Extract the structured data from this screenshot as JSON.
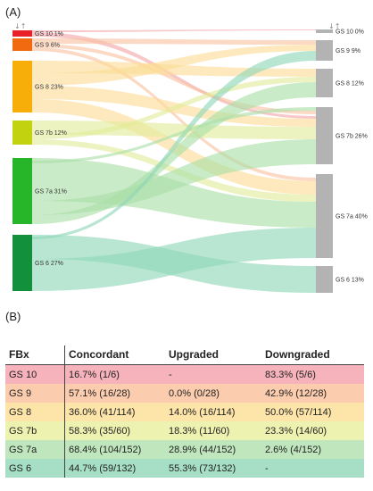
{
  "panel_a_label": "(A)",
  "panel_b_label": "(B)",
  "sankey": {
    "left_nodes": [
      {
        "id": "GS 10",
        "label": "GS 10 1%",
        "color": "#e8202a"
      },
      {
        "id": "GS 9",
        "label": "GS 9 6%",
        "color": "#f26a0f"
      },
      {
        "id": "GS 8",
        "label": "GS 8 23%",
        "color": "#f7ae09"
      },
      {
        "id": "GS 7b",
        "label": "GS 7b 12%",
        "color": "#c3d20f"
      },
      {
        "id": "GS 7a",
        "label": "GS 7a 31%",
        "color": "#27b52a"
      },
      {
        "id": "GS 6",
        "label": "GS 6 27%",
        "color": "#13903b"
      }
    ],
    "right_nodes": [
      {
        "id": "GS 10",
        "label": "GS 10 0%",
        "color": "#b3b3b3"
      },
      {
        "id": "GS 9",
        "label": "GS 9 9%",
        "color": "#b3b3b3"
      },
      {
        "id": "GS 8",
        "label": "GS 8 12%",
        "color": "#b3b3b3"
      },
      {
        "id": "GS 7b",
        "label": "GS 7b 26%",
        "color": "#b3b3b3"
      },
      {
        "id": "GS 7a",
        "label": "GS 7a 40%",
        "color": "#b3b3b3"
      },
      {
        "id": "GS 6",
        "label": "GS 6 13%",
        "color": "#b3b3b3"
      }
    ],
    "flow_colors": {
      "GS 10": "#f2a4a8",
      "GS 9": "#f8c2a0",
      "GS 8": "#fbdc94",
      "GS 7b": "#e2ec9a",
      "GS 7a": "#a9dea6",
      "GS 6": "#8ed6b8"
    },
    "sort_icon": "sort-arrows-icon"
  },
  "table": {
    "headers": [
      "FBx",
      "Concordant",
      "Upgraded",
      "Downgraded"
    ],
    "rows": [
      {
        "grade": "GS 10",
        "color": "#f7b3bb",
        "concordant": "16.7% (1/6)",
        "upgraded": "-",
        "downgraded": "83.3% (5/6)"
      },
      {
        "grade": "GS 9",
        "color": "#fbccae",
        "concordant": "57.1% (16/28)",
        "upgraded": "0.0% (0/28)",
        "downgraded": "42.9% (12/28)"
      },
      {
        "grade": "GS 8",
        "color": "#fde4a8",
        "concordant": "36.0% (41/114)",
        "upgraded": "14.0% (16/114)",
        "downgraded": "50.0% (57/114)"
      },
      {
        "grade": "GS 7b",
        "color": "#eef2b0",
        "concordant": "58.3% (35/60)",
        "upgraded": "18.3% (11/60)",
        "downgraded": "23.3% (14/60)"
      },
      {
        "grade": "GS 7a",
        "color": "#bfe6bd",
        "concordant": "68.4% (104/152)",
        "upgraded": "28.9% (44/152)",
        "downgraded": "2.6% (4/152)"
      },
      {
        "grade": "GS 6",
        "color": "#a6dfc6",
        "concordant": "44.7% (59/132)",
        "upgraded": "55.3% (73/132)",
        "downgraded": "-"
      }
    ]
  }
}
